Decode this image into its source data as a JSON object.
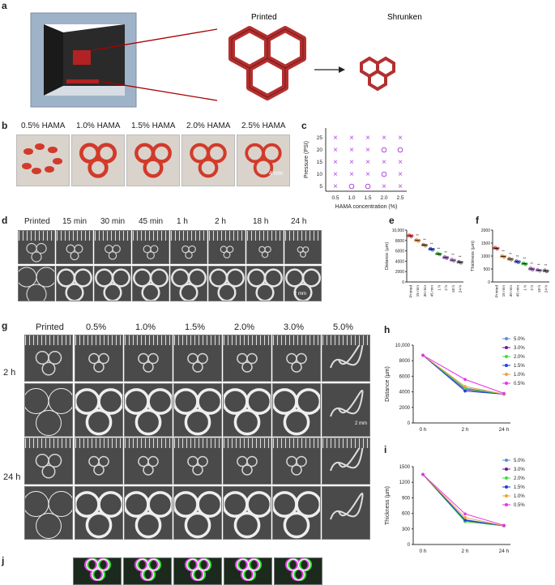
{
  "panels": {
    "a": {
      "label": "a",
      "printed": "Printed",
      "shrunken": "Shrunken"
    },
    "b": {
      "label": "b",
      "items": [
        "0.5% HAMA",
        "1.0% HAMA",
        "1.5% HAMA",
        "2.0% HAMA",
        "2.5% HAMA"
      ],
      "scale": "4 mm"
    },
    "c": {
      "label": "c"
    },
    "d": {
      "label": "d",
      "times": [
        "Printed",
        "15 min",
        "30 min",
        "45 min",
        "1 h",
        "2 h",
        "18 h",
        "24 h"
      ],
      "scale": "2 mm"
    },
    "e": {
      "label": "e"
    },
    "f": {
      "label": "f"
    },
    "g": {
      "label": "g",
      "concs": [
        "Printed",
        "0.5%",
        "1.0%",
        "1.5%",
        "2.0%",
        "3.0%",
        "5.0%"
      ],
      "row1": "2 h",
      "row2": "24 h",
      "scale": "2 mm"
    },
    "h": {
      "label": "h"
    },
    "i": {
      "label": "i"
    },
    "j": {
      "label": "j"
    }
  },
  "chart_data": [
    {
      "id": "c",
      "type": "scatter",
      "xlabel": "HAMA concentration (%)",
      "ylabel": "Pressure (PSI)",
      "x_ticks": [
        "0.5",
        "1.0",
        "1.5",
        "2.0",
        "2.5"
      ],
      "y_ticks": [
        "5",
        "10",
        "15",
        "20",
        "25"
      ],
      "grid": [
        {
          "y": "25",
          "marks": [
            "x",
            "x",
            "x",
            "x",
            "x"
          ]
        },
        {
          "y": "20",
          "marks": [
            "x",
            "x",
            "x",
            "o",
            "o"
          ]
        },
        {
          "y": "15",
          "marks": [
            "x",
            "x",
            "x",
            "x",
            "x"
          ]
        },
        {
          "y": "10",
          "marks": [
            "x",
            "x",
            "x",
            "o",
            "x"
          ]
        },
        {
          "y": "5",
          "marks": [
            "x",
            "o",
            "o",
            "x",
            "x"
          ]
        }
      ],
      "color": "#b04ad8"
    },
    {
      "id": "e",
      "type": "scatter",
      "ylabel": "Distance (µm)",
      "ylim": [
        0,
        10000
      ],
      "y_ticks": [
        "0",
        "2000",
        "4000",
        "6000",
        "8000",
        "10,000"
      ],
      "categories": [
        "Printed",
        "15 min",
        "30 min",
        "45 min",
        "1 h",
        "2 h",
        "18 h",
        "24 h"
      ],
      "values": [
        8900,
        8000,
        7100,
        6300,
        5400,
        4700,
        4200,
        3800
      ],
      "annotations": [
        "",
        "**",
        "**",
        "**",
        "**",
        "**",
        "**",
        "**"
      ],
      "colors": [
        "#d62728",
        "#e07b20",
        "#8b6b3a",
        "#1f3fbf",
        "#2ca02c",
        "#7b3fa0",
        "#9b59b6",
        "#555555"
      ]
    },
    {
      "id": "f",
      "type": "scatter",
      "ylabel": "Thickness (µm)",
      "ylim": [
        0,
        2000
      ],
      "y_ticks": [
        "0",
        "500",
        "1000",
        "1500",
        "2000"
      ],
      "categories": [
        "Printed",
        "15 min",
        "30 min",
        "45 min",
        "1 h",
        "2 h",
        "18 h",
        "24 h"
      ],
      "values": [
        1300,
        980,
        880,
        780,
        700,
        500,
        450,
        430
      ],
      "annotations": [
        "",
        "**",
        "**",
        "**",
        "**",
        "**",
        "**",
        "**"
      ],
      "colors": [
        "#d62728",
        "#e07b20",
        "#8b6b3a",
        "#1f3fbf",
        "#2ca02c",
        "#7b3fa0",
        "#9b59b6",
        "#555555"
      ]
    },
    {
      "id": "h",
      "type": "line",
      "ylabel": "Distance (µm)",
      "ylim": [
        0,
        10000
      ],
      "y_ticks": [
        "0",
        "2000",
        "4000",
        "6000",
        "8000",
        "10,000"
      ],
      "x": [
        "0 h",
        "2 h",
        "24 h"
      ],
      "series": [
        {
          "name": "5.0%",
          "values": [
            8700,
            4500,
            3700
          ],
          "color": "#5b8fd6"
        },
        {
          "name": "3.0%",
          "values": [
            8700,
            4300,
            3700
          ],
          "color": "#6a1b9a"
        },
        {
          "name": "2.0%",
          "values": [
            8700,
            4400,
            3700
          ],
          "color": "#3ddc3d"
        },
        {
          "name": "1.5%",
          "values": [
            8700,
            4100,
            3700
          ],
          "color": "#1f3fd6"
        },
        {
          "name": "1.0%",
          "values": [
            8700,
            4700,
            3700
          ],
          "color": "#f2a23a"
        },
        {
          "name": "0.5%",
          "values": [
            8700,
            5600,
            3800
          ],
          "color": "#e632e6"
        }
      ],
      "legend": "top-right"
    },
    {
      "id": "i",
      "type": "line",
      "ylabel": "Thickness (µm)",
      "ylim": [
        0,
        1500
      ],
      "y_ticks": [
        "0",
        "300",
        "600",
        "900",
        "1200",
        "1500"
      ],
      "x": [
        "0 h",
        "2 h",
        "24 h"
      ],
      "series": [
        {
          "name": "5.0%",
          "values": [
            1350,
            480,
            360
          ],
          "color": "#5b8fd6"
        },
        {
          "name": "3.0%",
          "values": [
            1350,
            460,
            360
          ],
          "color": "#6a1b9a"
        },
        {
          "name": "2.0%",
          "values": [
            1350,
            440,
            360
          ],
          "color": "#3ddc3d"
        },
        {
          "name": "1.5%",
          "values": [
            1350,
            470,
            360
          ],
          "color": "#1f3fd6"
        },
        {
          "name": "1.0%",
          "values": [
            1350,
            520,
            360
          ],
          "color": "#f2a23a"
        },
        {
          "name": "0.5%",
          "values": [
            1350,
            590,
            370
          ],
          "color": "#e632e6"
        }
      ],
      "legend": "top-right"
    }
  ]
}
